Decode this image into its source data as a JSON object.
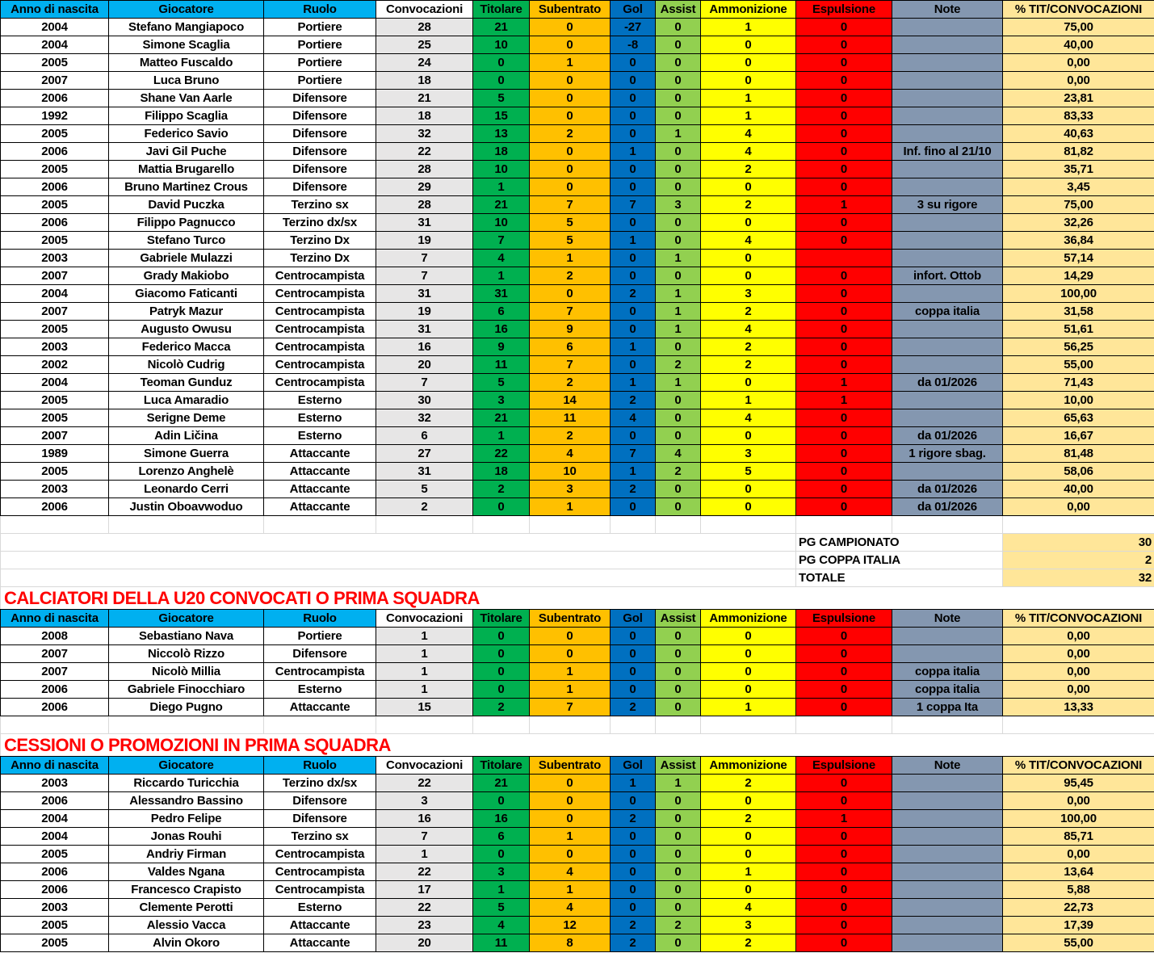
{
  "headers": [
    "Anno di nascita",
    "Giocatore",
    "Ruolo",
    "Convocazioni",
    "Titolare",
    "Subentrato",
    "Gol",
    "Assist",
    "Ammonizione",
    "Espulsione",
    "Note",
    "% TIT/CONVOCAZIONI"
  ],
  "colors": {
    "header_blue": "#00b0f0",
    "convocazioni": "#e7e6e6",
    "titolare": "#00b050",
    "subentrato": "#ffc000",
    "gol": "#0070c0",
    "assist": "#92d050",
    "ammonizione": "#ffff00",
    "espulsione": "#ff0000",
    "note": "#8497b0",
    "percent": "#ffe699",
    "section_title": "#ff0000"
  },
  "main": [
    [
      "2004",
      "Stefano Mangiapoco",
      "Portiere",
      "28",
      "21",
      "0",
      "-27",
      "0",
      "1",
      "0",
      "",
      "75,00"
    ],
    [
      "2004",
      "Simone Scaglia",
      "Portiere",
      "25",
      "10",
      "0",
      "-8",
      "0",
      "0",
      "0",
      "",
      "40,00"
    ],
    [
      "2005",
      "Matteo Fuscaldo",
      "Portiere",
      "24",
      "0",
      "1",
      "0",
      "0",
      "0",
      "0",
      "",
      "0,00"
    ],
    [
      "2007",
      "Luca Bruno",
      "Portiere",
      "18",
      "0",
      "0",
      "0",
      "0",
      "0",
      "0",
      "",
      "0,00"
    ],
    [
      "2006",
      "Shane Van Aarle",
      "Difensore",
      "21",
      "5",
      "0",
      "0",
      "0",
      "1",
      "0",
      "",
      "23,81"
    ],
    [
      "1992",
      "Filippo Scaglia",
      "Difensore",
      "18",
      "15",
      "0",
      "0",
      "0",
      "1",
      "0",
      "",
      "83,33"
    ],
    [
      "2005",
      "Federico Savio",
      "Difensore",
      "32",
      "13",
      "2",
      "0",
      "1",
      "4",
      "0",
      "",
      "40,63"
    ],
    [
      "2006",
      "Javi Gil Puche",
      "Difensore",
      "22",
      "18",
      "0",
      "1",
      "0",
      "4",
      "0",
      "Inf. fino al 21/10",
      "81,82"
    ],
    [
      "2005",
      "Mattia Brugarello",
      "Difensore",
      "28",
      "10",
      "0",
      "0",
      "0",
      "2",
      "0",
      "",
      "35,71"
    ],
    [
      "2006",
      "Bruno Martinez Crous",
      "Difensore",
      "29",
      "1",
      "0",
      "0",
      "0",
      "0",
      "0",
      "",
      "3,45"
    ],
    [
      "2005",
      "David Puczka",
      "Terzino sx",
      "28",
      "21",
      "7",
      "7",
      "3",
      "2",
      "1",
      "3 su rigore",
      "75,00"
    ],
    [
      "2006",
      "Filippo Pagnucco",
      "Terzino dx/sx",
      "31",
      "10",
      "5",
      "0",
      "0",
      "0",
      "0",
      "",
      "32,26"
    ],
    [
      "2005",
      "Stefano Turco",
      "Terzino Dx",
      "19",
      "7",
      "5",
      "1",
      "0",
      "4",
      "0",
      "",
      "36,84"
    ],
    [
      "2003",
      "Gabriele Mulazzi",
      "Terzino Dx",
      "7",
      "4",
      "1",
      "0",
      "1",
      "0",
      "",
      "",
      "57,14"
    ],
    [
      "2007",
      "Grady Makiobo",
      "Centrocampista",
      "7",
      "1",
      "2",
      "0",
      "0",
      "0",
      "0",
      "infort. Ottob",
      "14,29"
    ],
    [
      "2004",
      "Giacomo Faticanti",
      "Centrocampista",
      "31",
      "31",
      "0",
      "2",
      "1",
      "3",
      "0",
      "",
      "100,00"
    ],
    [
      "2007",
      "Patryk Mazur",
      "Centrocampista",
      "19",
      "6",
      "7",
      "0",
      "1",
      "2",
      "0",
      "coppa italia",
      "31,58"
    ],
    [
      "2005",
      "Augusto Owusu",
      "Centrocampista",
      "31",
      "16",
      "9",
      "0",
      "1",
      "4",
      "0",
      "",
      "51,61"
    ],
    [
      "2003",
      "Federico Macca",
      "Centrocampista",
      "16",
      "9",
      "6",
      "1",
      "0",
      "2",
      "0",
      "",
      "56,25"
    ],
    [
      "2002",
      "Nicolò Cudrig",
      "Centrocampista",
      "20",
      "11",
      "7",
      "0",
      "2",
      "2",
      "0",
      "",
      "55,00"
    ],
    [
      "2004",
      "Teoman Gunduz",
      "Centrocampista",
      "7",
      "5",
      "2",
      "1",
      "1",
      "0",
      "1",
      "da 01/2026",
      "71,43"
    ],
    [
      "2005",
      "Luca Amaradio",
      "Esterno",
      "30",
      "3",
      "14",
      "2",
      "0",
      "1",
      "1",
      "",
      "10,00"
    ],
    [
      "2005",
      "Serigne Deme",
      "Esterno",
      "32",
      "21",
      "11",
      "4",
      "0",
      "4",
      "0",
      "",
      "65,63"
    ],
    [
      "2007",
      "Adin Ličina",
      "Esterno",
      "6",
      "1",
      "2",
      "0",
      "0",
      "0",
      "0",
      "da 01/2026",
      "16,67"
    ],
    [
      "1989",
      "Simone Guerra",
      "Attaccante",
      "27",
      "22",
      "4",
      "7",
      "4",
      "3",
      "0",
      "1 rigore sbag.",
      "81,48"
    ],
    [
      "2005",
      "Lorenzo Anghelè",
      "Attaccante",
      "31",
      "18",
      "10",
      "1",
      "2",
      "5",
      "0",
      "",
      "58,06"
    ],
    [
      "2003",
      "Leonardo Cerri",
      "Attaccante",
      "5",
      "2",
      "3",
      "2",
      "0",
      "0",
      "0",
      "da 01/2026",
      "40,00"
    ],
    [
      "2006",
      "Justin Oboavwoduo",
      "Attaccante",
      "2",
      "0",
      "1",
      "0",
      "0",
      "0",
      "0",
      "da 01/2026",
      "0,00"
    ]
  ],
  "summary": [
    {
      "label": "PG CAMPIONATO",
      "value": "30"
    },
    {
      "label": "PG COPPA ITALIA",
      "value": "2"
    },
    {
      "label": "TOTALE",
      "value": "32"
    }
  ],
  "u20": {
    "title": "CALCIATORI DELLA U20 CONVOCATI O PRIMA SQUADRA",
    "rows": [
      [
        "2008",
        "Sebastiano Nava",
        "Portiere",
        "1",
        "0",
        "0",
        "0",
        "0",
        "0",
        "0",
        "",
        "0,00"
      ],
      [
        "2007",
        "Niccolò Rizzo",
        "Difensore",
        "1",
        "0",
        "0",
        "0",
        "0",
        "0",
        "0",
        "",
        "0,00"
      ],
      [
        "2007",
        "Nicolò Millia",
        "Centrocampista",
        "1",
        "0",
        "1",
        "0",
        "0",
        "0",
        "0",
        "coppa italia",
        "0,00"
      ],
      [
        "2006",
        "Gabriele Finocchiaro",
        "Esterno",
        "1",
        "0",
        "1",
        "0",
        "0",
        "0",
        "0",
        "coppa italia",
        "0,00"
      ],
      [
        "2006",
        "Diego Pugno",
        "Attaccante",
        "15",
        "2",
        "7",
        "2",
        "0",
        "1",
        "0",
        "1 coppa Ita",
        "13,33"
      ]
    ]
  },
  "cessioni": {
    "title": "CESSIONI O PROMOZIONI IN PRIMA SQUADRA",
    "rows": [
      [
        "2003",
        "Riccardo Turicchia",
        "Terzino dx/sx",
        "22",
        "21",
        "0",
        "1",
        "1",
        "2",
        "0",
        "",
        "95,45"
      ],
      [
        "2006",
        "Alessandro Bassino",
        "Difensore",
        "3",
        "0",
        "0",
        "0",
        "0",
        "0",
        "0",
        "",
        "0,00"
      ],
      [
        "2004",
        "Pedro Felipe",
        "Difensore",
        "16",
        "16",
        "0",
        "2",
        "0",
        "2",
        "1",
        "",
        "100,00"
      ],
      [
        "2004",
        "Jonas Rouhi",
        "Terzino sx",
        "7",
        "6",
        "1",
        "0",
        "0",
        "0",
        "0",
        "",
        "85,71"
      ],
      [
        "2005",
        "Andriy Firman",
        "Centrocampista",
        "1",
        "0",
        "0",
        "0",
        "0",
        "0",
        "0",
        "",
        "0,00"
      ],
      [
        "2006",
        "Valdes Ngana",
        "Centrocampista",
        "22",
        "3",
        "4",
        "0",
        "0",
        "1",
        "0",
        "",
        "13,64"
      ],
      [
        "2006",
        "Francesco Crapisto",
        "Centrocampista",
        "17",
        "1",
        "1",
        "0",
        "0",
        "0",
        "0",
        "",
        "5,88"
      ],
      [
        "2003",
        "Clemente Perotti",
        "Esterno",
        "22",
        "5",
        "4",
        "0",
        "0",
        "4",
        "0",
        "",
        "22,73"
      ],
      [
        "2005",
        "Alessio Vacca",
        "Attaccante",
        "23",
        "4",
        "12",
        "2",
        "2",
        "3",
        "0",
        "",
        "17,39"
      ],
      [
        "2005",
        "Alvin Okoro",
        "Attaccante",
        "20",
        "11",
        "8",
        "2",
        "0",
        "2",
        "0",
        "",
        "55,00"
      ]
    ]
  }
}
